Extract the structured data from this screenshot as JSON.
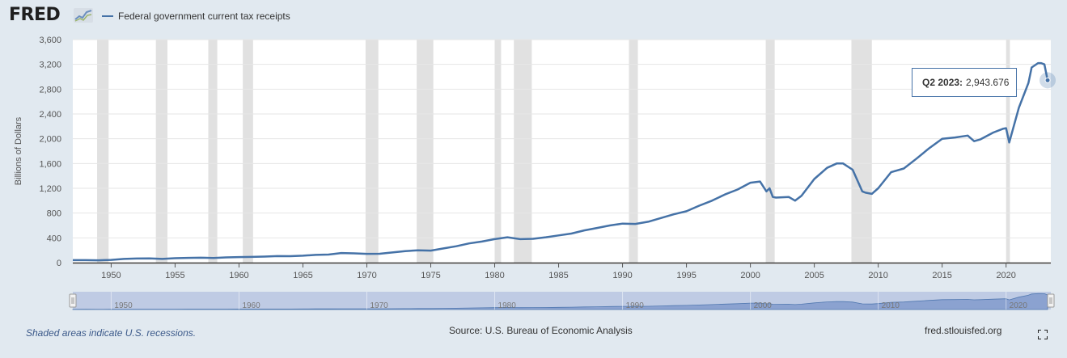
{
  "header": {
    "logo_text": "FRED",
    "legend_label": "Federal government current tax receipts"
  },
  "footer": {
    "recession_note": "Shaded areas indicate U.S. recessions.",
    "source": "Source: U.S. Bureau of Economic Analysis",
    "site": "fred.stlouisfed.org"
  },
  "tooltip": {
    "label": "Q2 2023:",
    "value": "2,943.676"
  },
  "colors": {
    "series": "#4572a7",
    "recession": "#e1e1e1",
    "background": "#e1e9f0",
    "plot": "#ffffff"
  },
  "icons": {
    "logo_mark": "chart-line-icon",
    "fullscreen": "fullscreen-icon"
  },
  "chart_data": {
    "type": "line",
    "title": "",
    "xlabel": "",
    "ylabel": "Billions of Dollars",
    "xlim": [
      1947.0,
      2023.5
    ],
    "ylim": [
      0,
      3600
    ],
    "grid": true,
    "legend_position": "top-left",
    "y_ticks": [
      0,
      400,
      800,
      1200,
      1600,
      2000,
      2400,
      2800,
      3200,
      3600
    ],
    "y_tick_labels": [
      "0",
      "400",
      "800",
      "1,200",
      "1,600",
      "2,000",
      "2,400",
      "2,800",
      "3,200",
      "3,600"
    ],
    "x_ticks": [
      1950,
      1955,
      1960,
      1965,
      1970,
      1975,
      1980,
      1985,
      1990,
      1995,
      2000,
      2005,
      2010,
      2015,
      2020
    ],
    "x_tick_labels": [
      "1950",
      "1955",
      "1960",
      "1965",
      "1970",
      "1975",
      "1980",
      "1985",
      "1990",
      "1995",
      "2000",
      "2005",
      "2010",
      "2015",
      "2020"
    ],
    "navigator_ticks": [
      1950,
      1960,
      1970,
      1980,
      1990,
      2000,
      2010,
      2020
    ],
    "navigator_tick_labels": [
      "1950",
      "1960",
      "1970",
      "1980",
      "1990",
      "2000",
      "2010",
      "2020"
    ],
    "recessions": [
      [
        1948.9,
        1949.8
      ],
      [
        1953.5,
        1954.4
      ],
      [
        1957.6,
        1958.3
      ],
      [
        1960.3,
        1961.1
      ],
      [
        1969.9,
        1970.9
      ],
      [
        1973.9,
        1975.2
      ],
      [
        1980.0,
        1980.5
      ],
      [
        1981.5,
        1982.9
      ],
      [
        1990.5,
        1991.2
      ],
      [
        2001.2,
        2001.9
      ],
      [
        2007.9,
        2009.5
      ],
      [
        2020.0,
        2020.3
      ]
    ],
    "series": [
      {
        "name": "Federal government current tax receipts",
        "x": [
          1947.0,
          1948.0,
          1949.0,
          1950.0,
          1951.0,
          1952.0,
          1953.0,
          1954.0,
          1955.0,
          1956.0,
          1957.0,
          1958.0,
          1959.0,
          1960.0,
          1961.0,
          1962.0,
          1963.0,
          1964.0,
          1965.0,
          1966.0,
          1967.0,
          1968.0,
          1969.0,
          1970.0,
          1971.0,
          1972.0,
          1973.0,
          1974.0,
          1975.0,
          1976.0,
          1977.0,
          1978.0,
          1979.0,
          1980.0,
          1981.0,
          1982.0,
          1983.0,
          1984.0,
          1985.0,
          1986.0,
          1987.0,
          1988.0,
          1989.0,
          1990.0,
          1991.0,
          1992.0,
          1993.0,
          1994.0,
          1995.0,
          1996.0,
          1997.0,
          1998.0,
          1999.0,
          2000.0,
          2000.75,
          2001.25,
          2001.5,
          2001.75,
          2002.0,
          2003.0,
          2003.5,
          2004.0,
          2005.0,
          2006.0,
          2006.75,
          2007.25,
          2008.0,
          2008.75,
          2009.0,
          2009.5,
          2010.0,
          2011.0,
          2012.0,
          2013.0,
          2014.0,
          2015.0,
          2016.0,
          2017.0,
          2017.5,
          2018.0,
          2019.0,
          2019.75,
          2020.0,
          2020.25,
          2021.0,
          2021.75,
          2022.0,
          2022.5,
          2022.75,
          2023.0,
          2023.25
        ],
        "values": [
          40,
          41,
          38,
          45,
          60,
          66,
          68,
          60,
          72,
          77,
          80,
          76,
          85,
          90,
          93,
          98,
          105,
          104,
          112,
          125,
          130,
          155,
          150,
          142,
          143,
          165,
          185,
          200,
          195,
          230,
          265,
          310,
          340,
          380,
          410,
          380,
          385,
          410,
          440,
          470,
          520,
          560,
          600,
          630,
          625,
          660,
          720,
          780,
          830,
          920,
          1000,
          1100,
          1180,
          1290,
          1310,
          1150,
          1200,
          1060,
          1050,
          1060,
          1000,
          1080,
          1350,
          1530,
          1600,
          1600,
          1500,
          1150,
          1130,
          1110,
          1200,
          1460,
          1520,
          1680,
          1850,
          2000,
          2020,
          2050,
          1960,
          1990,
          2100,
          2160,
          2170,
          1940,
          2500,
          2900,
          3150,
          3220,
          3220,
          3200,
          2943.676
        ]
      }
    ]
  }
}
